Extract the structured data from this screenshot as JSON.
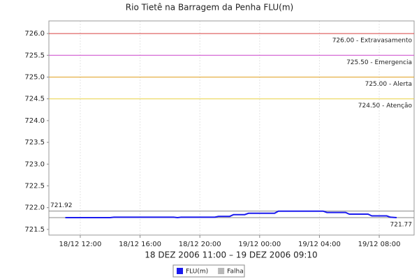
{
  "chart_data": {
    "type": "line",
    "title": "Rio Tietê na Barragem da Penha FLU(m)",
    "subtitle": "18 DEZ 2006 11:00 – 19 DEZ 2006 09:10",
    "x": [
      "18/12 11:00",
      "18/12 14:00",
      "18/12 14:15",
      "18/12 18:15",
      "18/12 18:30",
      "18/12 18:45",
      "18/12 21:00",
      "18/12 21:15",
      "18/12 22:00",
      "18/12 22:15",
      "18/12 23:00",
      "18/12 23:15",
      "19/12 01:00",
      "19/12 01:15",
      "19/12 04:15",
      "19/12 04:30",
      "19/12 05:45",
      "19/12 06:00",
      "19/12 07:15",
      "19/12 07:30",
      "19/12 08:30",
      "19/12 08:45",
      "19/12 09:10"
    ],
    "series": [
      {
        "name": "FLU(m)",
        "color": "#1a1aee",
        "values": [
          721.77,
          721.77,
          721.78,
          721.78,
          721.77,
          721.78,
          721.78,
          721.8,
          721.8,
          721.84,
          721.84,
          721.87,
          721.87,
          721.92,
          721.92,
          721.89,
          721.89,
          721.85,
          721.85,
          721.81,
          721.81,
          721.78,
          721.77
        ]
      },
      {
        "name": "Falha",
        "color": "#b8b8b8",
        "values": [
          null,
          null,
          null,
          null,
          null,
          null,
          null,
          null,
          null,
          null,
          null,
          null,
          null,
          null,
          null,
          null,
          null,
          null,
          null,
          null,
          null,
          null,
          null
        ]
      }
    ],
    "xlim": [
      "18/12 09:54",
      "19/12 10:20"
    ],
    "xticks": [
      "18/12 12:00",
      "18/12 16:00",
      "18/12 20:00",
      "19/12 00:00",
      "19/12 04:00",
      "19/12 08:00"
    ],
    "ylim": [
      721.37,
      726.29
    ],
    "yticks": [
      {
        "value": 726,
        "label": "726.0"
      },
      725.5,
      {
        "value": 725,
        "label": "725.0"
      },
      724.5,
      {
        "value": 724,
        "label": "724.0"
      },
      723.5,
      {
        "value": 723,
        "label": "723.0"
      },
      722.5,
      {
        "value": 722,
        "label": "722.0"
      },
      721.5
    ],
    "grid": true,
    "thresholds": [
      {
        "value": 726,
        "label": "726.00 - Extravasamento",
        "color": "#d84040"
      },
      {
        "value": 725.5,
        "label": "725.50 - Emergencia",
        "color": "#cc44cc"
      },
      {
        "value": 725,
        "label": "725.00 - Alerta",
        "color": "#e0a020"
      },
      {
        "value": 724.5,
        "label": "724.50 - Atenção",
        "color": "#e8d040"
      }
    ],
    "markers": [
      {
        "value": 721.92,
        "label": "721.92",
        "side": "left",
        "color": "#888888"
      },
      {
        "value": 721.77,
        "label": "721.77",
        "side": "right",
        "color": "#888888"
      }
    ],
    "legend": "bottom"
  }
}
